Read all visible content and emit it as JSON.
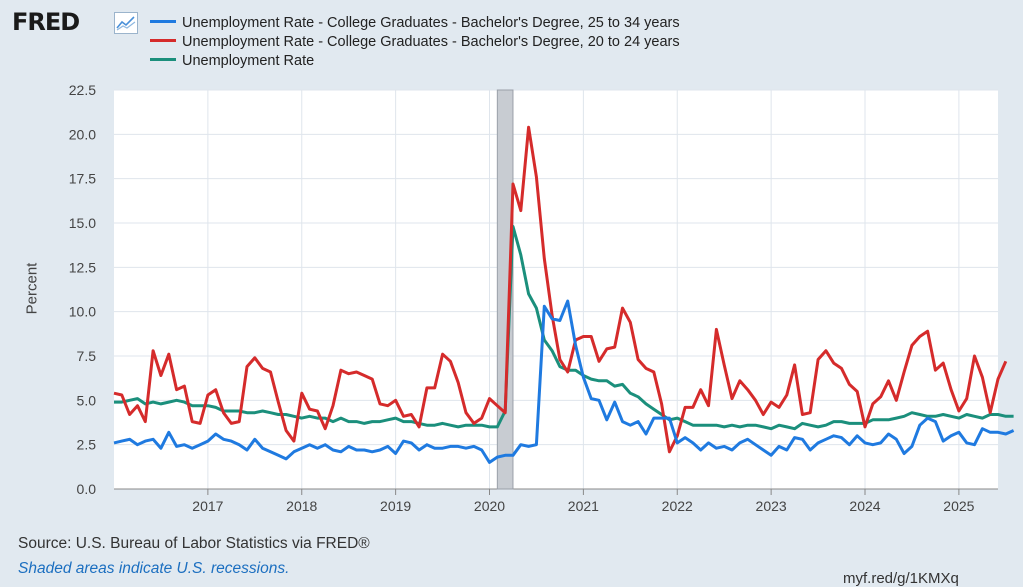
{
  "header": {
    "logo_text": "FRED",
    "logo_icon": "chart-line-icon"
  },
  "source": "Source: U.S. Bureau of Labor Statistics via FRED®",
  "note": "Shaded areas indicate U.S. recessions.",
  "link": "myf.red/g/1KMXq",
  "chart_data": {
    "type": "line",
    "ylabel": "Percent",
    "ylim": [
      0,
      22.5
    ],
    "yticks": [
      "0.0",
      "2.5",
      "5.0",
      "7.5",
      "10.0",
      "12.5",
      "15.0",
      "17.5",
      "20.0",
      "22.5"
    ],
    "xlim": [
      "2016-01",
      "2025-06"
    ],
    "xticks": [
      "2017",
      "2018",
      "2019",
      "2020",
      "2021",
      "2022",
      "2023",
      "2024",
      "2025"
    ],
    "grid": true,
    "recessions": [
      [
        "2020-02",
        "2020-04"
      ]
    ],
    "series": [
      {
        "name": "Unemployment Rate - College Graduates - Bachelor's Degree, 25 to 34 years",
        "color": "#1f7ae0",
        "start": "2016-01",
        "values": [
          2.6,
          2.7,
          2.8,
          2.5,
          2.7,
          2.8,
          2.3,
          3.2,
          2.4,
          2.5,
          2.3,
          2.5,
          2.7,
          3.1,
          2.8,
          2.7,
          2.5,
          2.2,
          2.8,
          2.3,
          2.1,
          1.9,
          1.7,
          2.1,
          2.3,
          2.5,
          2.3,
          2.5,
          2.2,
          2.1,
          2.4,
          2.2,
          2.2,
          2.1,
          2.2,
          2.4,
          2.0,
          2.7,
          2.6,
          2.2,
          2.5,
          2.3,
          2.3,
          2.4,
          2.4,
          2.3,
          2.4,
          2.2,
          1.5,
          1.8,
          1.9,
          1.9,
          2.5,
          2.4,
          2.5,
          10.3,
          9.6,
          9.5,
          10.6,
          8.1,
          6.3,
          5.1,
          5.0,
          3.9,
          4.9,
          3.8,
          3.6,
          3.8,
          3.1,
          4.0,
          4.0,
          4.0,
          2.6,
          2.9,
          2.6,
          2.2,
          2.6,
          2.3,
          2.4,
          2.2,
          2.6,
          2.8,
          2.5,
          2.2,
          1.9,
          2.4,
          2.2,
          2.9,
          2.8,
          2.2,
          2.6,
          2.8,
          3.0,
          2.9,
          2.5,
          3.0,
          2.6,
          2.5,
          2.6,
          3.1,
          2.8,
          2.0,
          2.4,
          3.6,
          4.0,
          3.8,
          2.7,
          3.0,
          3.2,
          2.6,
          2.5,
          3.4,
          3.2,
          3.2,
          3.1,
          3.3
        ]
      },
      {
        "name": "Unemployment Rate - College Graduates - Bachelor's Degree, 20 to 24 years",
        "color": "#d52b2b",
        "start": "2016-01",
        "values": [
          5.4,
          5.3,
          4.2,
          4.7,
          3.8,
          7.8,
          6.4,
          7.6,
          5.6,
          5.8,
          3.8,
          3.7,
          5.3,
          5.6,
          4.3,
          3.7,
          3.8,
          6.9,
          7.4,
          6.8,
          6.6,
          4.9,
          3.3,
          2.7,
          5.4,
          4.5,
          4.4,
          3.4,
          4.7,
          6.7,
          6.5,
          6.6,
          6.4,
          6.2,
          4.8,
          4.7,
          5.0,
          4.1,
          4.2,
          3.5,
          5.7,
          5.7,
          7.6,
          7.2,
          6.0,
          4.3,
          3.7,
          4.0,
          5.1,
          4.7,
          4.3,
          17.2,
          15.7,
          20.4,
          17.6,
          13.0,
          9.8,
          7.3,
          6.6,
          8.4,
          8.6,
          8.6,
          7.2,
          7.9,
          8.0,
          10.2,
          9.4,
          7.3,
          6.8,
          6.6,
          4.8,
          2.1,
          3.0,
          4.6,
          4.6,
          5.6,
          4.7,
          9.0,
          7.0,
          5.1,
          6.1,
          5.6,
          5.0,
          4.2,
          4.9,
          4.6,
          5.3,
          7.0,
          4.2,
          4.3,
          7.3,
          7.8,
          7.1,
          6.8,
          5.9,
          5.5,
          3.5,
          4.8,
          5.2,
          6.1,
          5.0,
          6.6,
          8.1,
          8.6,
          8.9,
          6.7,
          7.1,
          5.6,
          4.4,
          5.1,
          7.5,
          6.3,
          4.3,
          6.2,
          7.2
        ]
      },
      {
        "name": "Unemployment Rate",
        "color": "#1b8f7c",
        "start": "2016-01",
        "values": [
          4.9,
          4.9,
          5.0,
          5.1,
          4.8,
          4.9,
          4.8,
          4.9,
          5.0,
          4.9,
          4.7,
          4.7,
          4.7,
          4.6,
          4.4,
          4.4,
          4.4,
          4.3,
          4.3,
          4.4,
          4.3,
          4.2,
          4.2,
          4.1,
          4.0,
          4.1,
          4.0,
          4.0,
          3.8,
          4.0,
          3.8,
          3.8,
          3.7,
          3.8,
          3.8,
          3.9,
          4.0,
          3.8,
          3.8,
          3.7,
          3.6,
          3.6,
          3.7,
          3.6,
          3.5,
          3.6,
          3.6,
          3.6,
          3.5,
          3.5,
          4.4,
          14.8,
          13.2,
          11.0,
          10.2,
          8.4,
          7.8,
          6.9,
          6.7,
          6.7,
          6.4,
          6.2,
          6.1,
          6.1,
          5.8,
          5.9,
          5.4,
          5.2,
          4.8,
          4.5,
          4.2,
          3.9,
          4.0,
          3.8,
          3.6,
          3.6,
          3.6,
          3.6,
          3.5,
          3.6,
          3.5,
          3.6,
          3.6,
          3.5,
          3.4,
          3.6,
          3.5,
          3.4,
          3.7,
          3.6,
          3.5,
          3.6,
          3.8,
          3.8,
          3.7,
          3.7,
          3.7,
          3.9,
          3.9,
          3.9,
          4.0,
          4.1,
          4.3,
          4.2,
          4.1,
          4.1,
          4.2,
          4.1,
          4.0,
          4.2,
          4.1,
          4.0,
          4.2,
          4.2,
          4.1,
          4.1
        ]
      }
    ]
  }
}
